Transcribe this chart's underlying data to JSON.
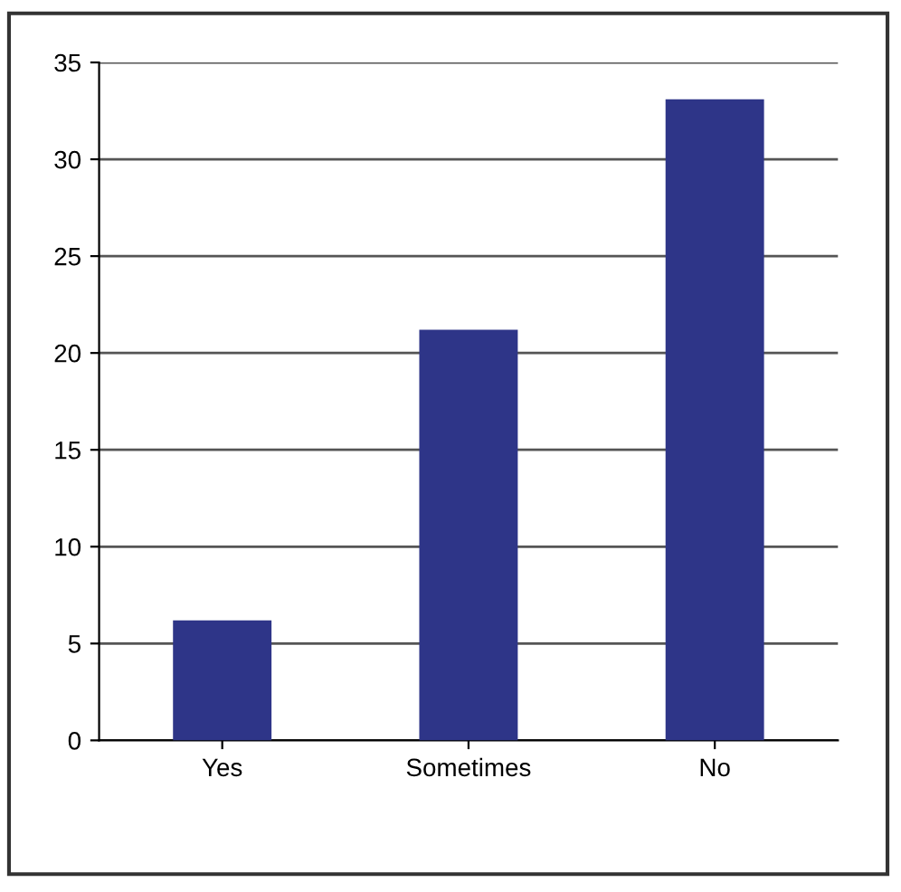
{
  "chart_data": {
    "type": "bar",
    "categories": [
      "Yes",
      "Sometimes",
      "No"
    ],
    "values": [
      6.2,
      21.2,
      33.1
    ],
    "color": "#2e3588",
    "ylim": [
      0,
      35
    ],
    "yticks": [
      0,
      5,
      10,
      15,
      20,
      25,
      30,
      35
    ],
    "grid": "y"
  }
}
